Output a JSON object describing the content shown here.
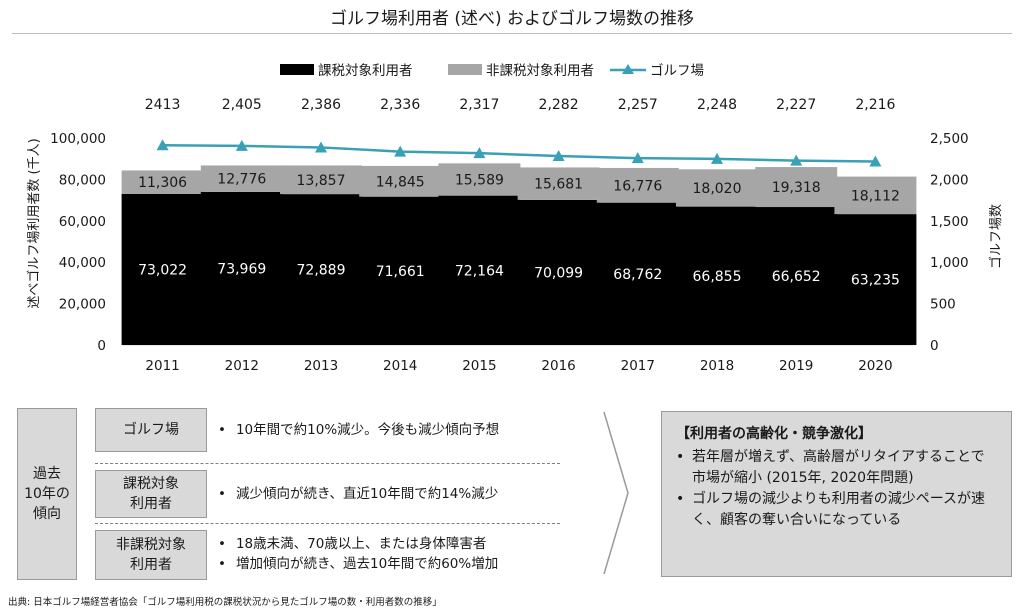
{
  "title": "ゴルフ場利用者 (述べ) およびゴルフ場数の推移",
  "chart_data": {
    "type": "bar",
    "stacked": true,
    "categories": [
      "2011",
      "2012",
      "2013",
      "2014",
      "2015",
      "2016",
      "2017",
      "2018",
      "2019",
      "2020"
    ],
    "series": [
      {
        "name": "課税対象利用者",
        "type": "bar",
        "color": "#000000",
        "values": [
          73022,
          73969,
          72889,
          71661,
          72164,
          70099,
          68762,
          66855,
          66652,
          63235
        ],
        "labels": [
          "73,022",
          "73,969",
          "72,889",
          "71,661",
          "72,164",
          "70,099",
          "68,762",
          "66,855",
          "66,652",
          "63,235"
        ]
      },
      {
        "name": "非課税対象利用者",
        "type": "bar",
        "color": "#a6a6a6",
        "values": [
          11306,
          12776,
          13857,
          14845,
          15589,
          15681,
          16776,
          18020,
          19318,
          18112
        ],
        "labels": [
          "11,306",
          "12,776",
          "13,857",
          "14,845",
          "15,589",
          "15,681",
          "16,776",
          "18,020",
          "19,318",
          "18,112"
        ]
      },
      {
        "name": "ゴルフ場",
        "type": "line",
        "axis": "right",
        "color": "#3aa0b5",
        "values": [
          2413,
          2405,
          2386,
          2336,
          2317,
          2282,
          2257,
          2248,
          2227,
          2216
        ],
        "labels": [
          "2413",
          "2,405",
          "2,386",
          "2,336",
          "2,317",
          "2,282",
          "2,257",
          "2,248",
          "2,227",
          "2,216"
        ]
      }
    ],
    "ylabel": "述べゴルフ場利用者数 (千人)",
    "y2label": "ゴルフ場数",
    "ylim": [
      0,
      100000
    ],
    "y2lim": [
      0,
      2500
    ],
    "yticks": [
      "0",
      "20,000",
      "40,000",
      "60,000",
      "80,000",
      "100,000"
    ],
    "y2ticks": [
      "0",
      "500",
      "1,000",
      "1,500",
      "2,000",
      "2,500"
    ],
    "legend_position": "top",
    "grid": false
  },
  "panel": {
    "side_label": "過去\n10年の\n傾向",
    "rows": [
      {
        "label": "ゴルフ場",
        "bullets": [
          "10年間で約10%減少。今後も減少傾向予想"
        ]
      },
      {
        "label": "課税対象\n利用者",
        "bullets": [
          "減少傾向が続き、直近10年間で約14%減少"
        ]
      },
      {
        "label": "非課税対象\n利用者",
        "bullets": [
          "18歳未満、70歳以上、または身体障害者",
          "増加傾向が続き、過去10年間で約60%増加"
        ]
      }
    ],
    "conclusion": {
      "heading": "【利用者の高齢化・競争激化】",
      "bullets": [
        "若年層が増えず、高齢層がリタイアすることで市場が縮小 (2015年, 2020年問題)",
        "ゴルフ場の減少よりも利用者の減少ペースが速く、顧客の奪い合いになっている"
      ]
    }
  },
  "source": "出典: 日本ゴルフ場経営者協会「ゴルフ場利用税の課税状況から見たゴルフ場の数・利用者数の推移」"
}
